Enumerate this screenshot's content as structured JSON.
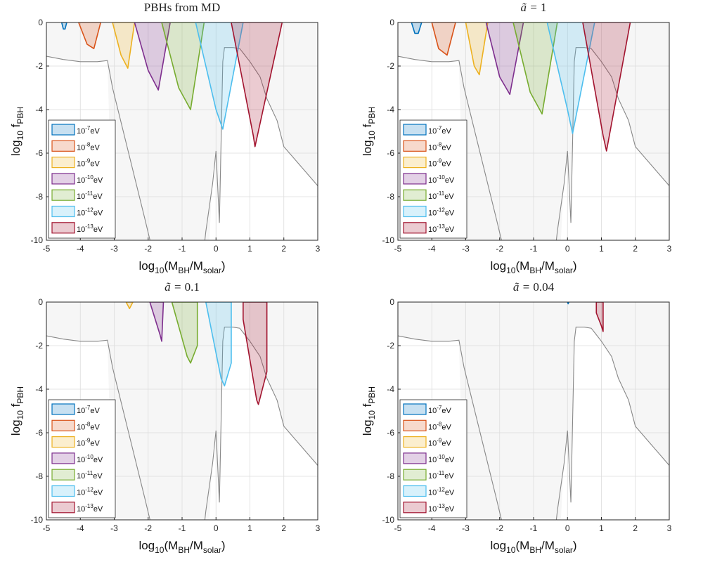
{
  "chart_data": [
    {
      "type": "area",
      "title_plain": "PBHs from MD",
      "title_prefix": "",
      "title_value": "",
      "xlabel": "log",
      "xlabel_sub": "10",
      "xlabel_rest": "(M",
      "xlabel_sub2": "BH",
      "xlabel_rest2": "/M",
      "xlabel_sub3": "solar",
      "xlabel_end": ")",
      "ylabel": "log",
      "ylabel_sub": "10",
      "ylabel_f": " f",
      "ylabel_sub2": "PBH",
      "xlim": [
        -5,
        3
      ],
      "ylim": [
        -10,
        0
      ],
      "xticks": [
        -5,
        -4,
        -3,
        -2,
        -1,
        0,
        1,
        2,
        3
      ],
      "yticks": [
        0,
        -2,
        -4,
        -6,
        -8,
        -10
      ],
      "grid": true,
      "legend_position": "bottom-left",
      "series": [
        {
          "name_base": "10",
          "name_exp": "-7",
          "name_unit": "eV",
          "color": "#0072BD",
          "x": [
            -4.55,
            -4.5,
            -4.45,
            -4.4
          ],
          "y": [
            0,
            -0.3,
            -0.3,
            0
          ]
        },
        {
          "name_base": "10",
          "name_exp": "-8",
          "name_unit": "eV",
          "color": "#D95319",
          "x": [
            -4.05,
            -3.8,
            -3.6,
            -3.4
          ],
          "y": [
            0,
            -1.0,
            -1.2,
            0
          ]
        },
        {
          "name_base": "10",
          "name_exp": "-9",
          "name_unit": "eV",
          "color": "#EDB120",
          "x": [
            -3.05,
            -2.8,
            -2.6,
            -2.4
          ],
          "y": [
            0,
            -1.5,
            -2.1,
            0
          ]
        },
        {
          "name_base": "10",
          "name_exp": "-10",
          "name_unit": "eV",
          "color": "#7E2F8E",
          "x": [
            -2.4,
            -2.0,
            -1.7,
            -1.35
          ],
          "y": [
            0,
            -2.2,
            -3.1,
            0
          ]
        },
        {
          "name_base": "10",
          "name_exp": "-11",
          "name_unit": "eV",
          "color": "#77AC30",
          "x": [
            -1.6,
            -1.1,
            -0.75,
            -0.35
          ],
          "y": [
            0,
            -3.0,
            -4.0,
            0
          ]
        },
        {
          "name_base": "10",
          "name_exp": "-12",
          "name_unit": "eV",
          "color": "#4DBEEE",
          "x": [
            -0.6,
            0.0,
            0.2,
            0.8
          ],
          "y": [
            0,
            -4.0,
            -4.9,
            0
          ]
        },
        {
          "name_base": "10",
          "name_exp": "-13",
          "name_unit": "eV",
          "color": "#A2142F",
          "x": [
            0.45,
            1.1,
            1.15,
            1.95
          ],
          "y": [
            0,
            -5.2,
            -5.7,
            0
          ]
        }
      ]
    },
    {
      "type": "area",
      "title_plain": "",
      "title_prefix": "ã = ",
      "title_value": "1",
      "xlim": [
        -5,
        3
      ],
      "ylim": [
        -10,
        0
      ],
      "xticks": [
        -5,
        -4,
        -3,
        -2,
        -1,
        0,
        1,
        2,
        3
      ],
      "yticks": [
        0,
        -2,
        -4,
        -6,
        -8,
        -10
      ],
      "grid": true,
      "legend_position": "bottom-left",
      "series": [
        {
          "color": "#0072BD",
          "x": [
            -4.6,
            -4.5,
            -4.4,
            -4.3
          ],
          "y": [
            0,
            -0.5,
            -0.5,
            0
          ]
        },
        {
          "color": "#D95319",
          "x": [
            -4.0,
            -3.8,
            -3.55,
            -3.3
          ],
          "y": [
            0,
            -1.2,
            -1.5,
            0
          ]
        },
        {
          "color": "#EDB120",
          "x": [
            -3.0,
            -2.75,
            -2.6,
            -2.35
          ],
          "y": [
            0,
            -2.0,
            -2.4,
            0
          ]
        },
        {
          "color": "#7E2F8E",
          "x": [
            -2.4,
            -2.0,
            -1.7,
            -1.3
          ],
          "y": [
            0,
            -2.5,
            -3.3,
            0
          ]
        },
        {
          "color": "#77AC30",
          "x": [
            -1.6,
            -1.1,
            -0.75,
            -0.3
          ],
          "y": [
            0,
            -3.2,
            -4.2,
            0
          ]
        },
        {
          "color": "#4DBEEE",
          "x": [
            -0.6,
            0.0,
            0.15,
            0.8
          ],
          "y": [
            0,
            -4.0,
            -5.1,
            0
          ]
        },
        {
          "color": "#A2142F",
          "x": [
            0.45,
            1.05,
            1.15,
            1.85
          ],
          "y": [
            0,
            -5.2,
            -5.9,
            0
          ]
        }
      ]
    },
    {
      "type": "area",
      "title_plain": "",
      "title_prefix": "ã = ",
      "title_value": "0.1",
      "xlim": [
        -5,
        3
      ],
      "ylim": [
        -10,
        0
      ],
      "xticks": [
        -5,
        -4,
        -3,
        -2,
        -1,
        0,
        1,
        2,
        3
      ],
      "yticks": [
        0,
        -2,
        -4,
        -6,
        -8,
        -10
      ],
      "grid": true,
      "legend_position": "bottom-left",
      "series": [
        {
          "color": "#0072BD",
          "x": [],
          "y": []
        },
        {
          "color": "#D95319",
          "x": [],
          "y": []
        },
        {
          "color": "#EDB120",
          "x": [
            -2.65,
            -2.55,
            -2.45
          ],
          "y": [
            0,
            -0.3,
            0
          ]
        },
        {
          "color": "#7E2F8E",
          "x": [
            -1.95,
            -1.65,
            -1.6,
            -1.55
          ],
          "y": [
            0,
            -1.5,
            -1.8,
            0
          ]
        },
        {
          "color": "#77AC30",
          "x": [
            -1.3,
            -0.85,
            -0.75,
            -0.55,
            -0.55
          ],
          "y": [
            0,
            -2.5,
            -2.8,
            -2.0,
            0
          ]
        },
        {
          "color": "#4DBEEE",
          "x": [
            -0.3,
            0.15,
            0.25,
            0.45,
            0.45
          ],
          "y": [
            0,
            -3.5,
            -3.85,
            -2.8,
            0
          ]
        },
        {
          "color": "#A2142F",
          "x": [
            0.8,
            0.8,
            1.2,
            1.25,
            1.5,
            1.5
          ],
          "y": [
            0,
            -0.8,
            -4.5,
            -4.7,
            -3.2,
            0
          ]
        }
      ]
    },
    {
      "type": "area",
      "title_plain": "",
      "title_prefix": "ã = ",
      "title_value": "0.04",
      "xlim": [
        -5,
        3
      ],
      "ylim": [
        -10,
        0
      ],
      "xticks": [
        -5,
        -4,
        -3,
        -2,
        -1,
        0,
        1,
        2,
        3
      ],
      "yticks": [
        0,
        -2,
        -4,
        -6,
        -8,
        -10
      ],
      "grid": true,
      "legend_position": "bottom-left",
      "series": [
        {
          "color": "#0072BD",
          "x": [
            0.0,
            0.02,
            0.04
          ],
          "y": [
            0,
            -0.08,
            0
          ]
        },
        {
          "color": "#D95319",
          "x": [],
          "y": []
        },
        {
          "color": "#EDB120",
          "x": [],
          "y": []
        },
        {
          "color": "#7E2F8E",
          "x": [],
          "y": []
        },
        {
          "color": "#77AC30",
          "x": [],
          "y": []
        },
        {
          "color": "#4DBEEE",
          "x": [],
          "y": []
        },
        {
          "color": "#A2142F",
          "x": [
            0.85,
            0.85,
            1.0,
            1.05,
            1.05
          ],
          "y": [
            0,
            -0.5,
            -1.1,
            -1.35,
            0
          ]
        }
      ]
    }
  ],
  "constraint": {
    "color": "#888888",
    "fill": "#f6f6f6",
    "upper_x": [
      -5,
      -4.5,
      -4,
      -3.5,
      -3.2,
      -3.05,
      -2.5,
      -2.1,
      -2.05,
      -2.0,
      -1.5,
      -1.0,
      -0.5,
      -0.3,
      -0.2,
      -0.1,
      0.0,
      0.1,
      0.2,
      0.25,
      0.5,
      0.7,
      0.8,
      1.0,
      1.3,
      1.5,
      1.8,
      2.0,
      2.5,
      3.0
    ],
    "upper_y": [
      -1.55,
      -1.7,
      -1.8,
      -1.8,
      -1.75,
      -10.2,
      -10.2,
      -10.2,
      -10.2,
      -10.2,
      -10.2,
      -10.2,
      -10.2,
      -10.2,
      -10.2,
      -7.0,
      -5.9,
      -9.2,
      -1.9,
      -1.15,
      -1.15,
      -1.2,
      -1.4,
      -1.8,
      -2.5,
      -3.5,
      -4.5,
      -5.7,
      -6.6,
      -7.5
    ],
    "line_x": [
      -5,
      -4.5,
      -4,
      -3.5,
      -3.2,
      -3.05,
      -2.1,
      -1.9
    ],
    "line_y": [
      -1.55,
      -1.7,
      -1.8,
      -1.8,
      -1.75,
      -3.0,
      -9.0,
      -10.3
    ],
    "lens_x": [
      -0.35,
      -0.3,
      -0.1,
      0.0,
      0.1,
      0.2,
      0.25,
      0.5,
      0.7,
      0.8,
      1.0,
      1.3,
      1.5,
      1.8,
      2.0,
      2.5,
      3.0
    ],
    "lens_y": [
      -10.3,
      -9.6,
      -7.4,
      -5.9,
      -9.2,
      -1.8,
      -1.15,
      -1.15,
      -1.2,
      -1.4,
      -1.8,
      -2.5,
      -3.5,
      -4.5,
      -5.7,
      -6.6,
      -7.5
    ]
  }
}
